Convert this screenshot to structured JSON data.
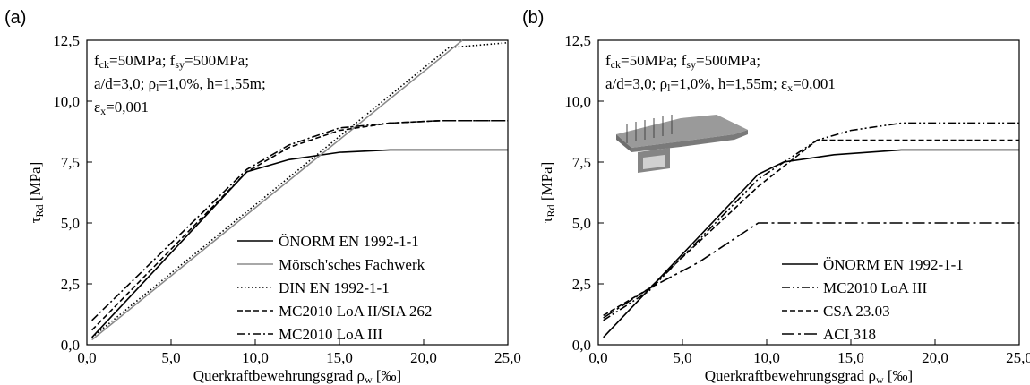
{
  "chart_data": [
    {
      "type": "line",
      "panel_label": "(a)",
      "annotation": [
        [
          "f",
          "ck",
          "=50MPa; f",
          "sy",
          "=500MPa;"
        ],
        [
          "a/d=3,0; ρ",
          "l",
          "=1,0%, h=1,55m;"
        ],
        [
          "ε",
          "x",
          "=0,001"
        ]
      ],
      "xlabel": [
        "Querkraftbewehrungsgrad ρ",
        "w",
        " [‰]"
      ],
      "ylabel": [
        "τ",
        "Rd",
        " [MPa]"
      ],
      "xlim": [
        0,
        25
      ],
      "ylim": [
        0,
        12.5
      ],
      "xticks": [
        {
          "value": 0,
          "label": "0,0"
        },
        {
          "value": 5,
          "label": "5,0"
        },
        {
          "value": 10,
          "label": "10,0"
        },
        {
          "value": 15,
          "label": "15,0"
        },
        {
          "value": 20,
          "label": "20,0"
        },
        {
          "value": 25,
          "label": "25,0"
        }
      ],
      "yticks": [
        {
          "value": 0,
          "label": "0,0"
        },
        {
          "value": 2.5,
          "label": "2,5"
        },
        {
          "value": 5,
          "label": "5,0"
        },
        {
          "value": 7.5,
          "label": "7,5"
        },
        {
          "value": 10,
          "label": "10,0"
        },
        {
          "value": 12.5,
          "label": "12,5"
        }
      ],
      "legend": "lower right",
      "series": [
        {
          "name": "ÖNORM EN 1992-1-1",
          "color": "#000000",
          "dash": "solid",
          "x": [
            0.3,
            9.5,
            12,
            15,
            18,
            25
          ],
          "values": [
            0.3,
            7.1,
            7.6,
            7.9,
            8.0,
            8.0
          ]
        },
        {
          "name": "Mörsch'sches Fachwerk",
          "color": "#8c8c8c",
          "dash": "solid",
          "x": [
            0.3,
            22.3
          ],
          "values": [
            0.2,
            12.5
          ]
        },
        {
          "name": "DIN EN 1992-1-1",
          "color": "#000000",
          "dash": "dotted",
          "x": [
            0.3,
            21.5,
            25
          ],
          "values": [
            0.3,
            12.2,
            12.4
          ]
        },
        {
          "name": "MC2010 LoA II/SIA 262",
          "color": "#000000",
          "dash": "dashed",
          "x": [
            0.3,
            9.5,
            12,
            15,
            18,
            21,
            25
          ],
          "values": [
            0.6,
            7.1,
            8.1,
            8.8,
            9.1,
            9.2,
            9.2
          ]
        },
        {
          "name": "MC2010 LoA III",
          "color": "#000000",
          "dash": "dashdot",
          "x": [
            0.3,
            9.5,
            12,
            15,
            18,
            21,
            25
          ],
          "values": [
            1.0,
            7.2,
            8.2,
            8.9,
            9.1,
            9.2,
            9.2
          ]
        }
      ]
    },
    {
      "type": "line",
      "panel_label": "(b)",
      "annotation": [
        [
          "f",
          "ck",
          "=50MPa; f",
          "sy",
          "=500MPa;"
        ],
        [
          "a/d=3,0; ρ",
          "l",
          "=1,0%, h=1,55m; ε",
          "x",
          "=0,001"
        ]
      ],
      "xlabel": [
        "Querkraftbewehrungsgrad ρ",
        "w",
        " [‰]"
      ],
      "ylabel": [
        "τ",
        "Rd",
        " [MPa]"
      ],
      "xlim": [
        0,
        25
      ],
      "ylim": [
        0,
        12.5
      ],
      "xticks": [
        {
          "value": 0,
          "label": "0,0"
        },
        {
          "value": 5,
          "label": "5,0"
        },
        {
          "value": 10,
          "label": "10,0"
        },
        {
          "value": 15,
          "label": "15,0"
        },
        {
          "value": 20,
          "label": "20,0"
        },
        {
          "value": 25,
          "label": "25,0"
        }
      ],
      "yticks": [
        {
          "value": 0,
          "label": "0,0"
        },
        {
          "value": 2.5,
          "label": "2,5"
        },
        {
          "value": 5,
          "label": "5,0"
        },
        {
          "value": 7.5,
          "label": "7,5"
        },
        {
          "value": 10,
          "label": "10,0"
        },
        {
          "value": 12.5,
          "label": "12,5"
        }
      ],
      "legend": "lower right",
      "series": [
        {
          "name": "ÖNORM EN 1992-1-1",
          "color": "#000000",
          "dash": "solid",
          "x": [
            0.3,
            9.5,
            11,
            14,
            18,
            25
          ],
          "values": [
            0.3,
            7.0,
            7.5,
            7.8,
            8.0,
            8.0
          ]
        },
        {
          "name": "MC2010 LoA III",
          "color": "#000000",
          "dash": "dashdotdot",
          "x": [
            0.3,
            3,
            9.5,
            13,
            15,
            18,
            25
          ],
          "values": [
            1.0,
            2.2,
            6.8,
            8.4,
            8.8,
            9.1,
            9.1
          ]
        },
        {
          "name": "CSA 23.03",
          "color": "#000000",
          "dash": "dashed",
          "x": [
            0.3,
            3,
            9.5,
            13,
            25
          ],
          "values": [
            1.2,
            2.3,
            6.5,
            8.4,
            8.4
          ]
        },
        {
          "name": "ACI 318",
          "color": "#000000",
          "dash": "longdashdot",
          "x": [
            0.3,
            3,
            6,
            9.5,
            25
          ],
          "values": [
            1.1,
            2.3,
            3.4,
            5.0,
            5.0
          ]
        }
      ]
    }
  ]
}
